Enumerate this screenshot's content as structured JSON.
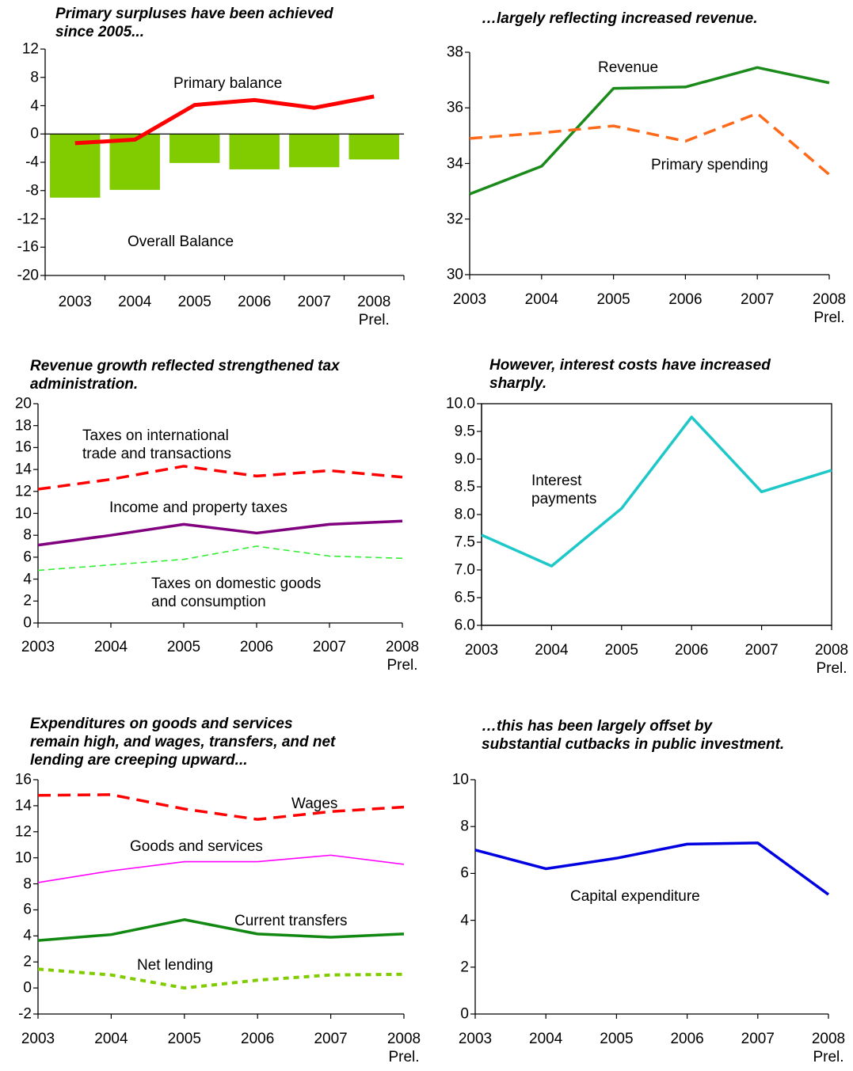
{
  "chart_data": [
    {
      "type": "combo",
      "title": "Primary surpluses have been achieved\nsince 2005...",
      "categories": [
        "2003",
        "2004",
        "2005",
        "2006",
        "2007",
        "2008\nPrel."
      ],
      "series": [
        {
          "name": "Overall Balance",
          "type": "bar",
          "color": "#80cc00",
          "values": [
            -9.0,
            -7.9,
            -4.1,
            -5.0,
            -4.7,
            -3.6
          ]
        },
        {
          "name": "Primary balance",
          "type": "line",
          "color": "#ff0000",
          "dash": "solid",
          "values": [
            -1.3,
            -0.8,
            4.1,
            4.8,
            3.7,
            5.3
          ]
        }
      ],
      "ylim": [
        -20,
        12
      ],
      "yticks": [
        -20,
        -16,
        -12,
        -8,
        -4,
        0,
        4,
        8,
        12
      ],
      "frame": false
    },
    {
      "type": "line",
      "title": "…largely reflecting increased revenue.",
      "categories": [
        "2003",
        "2004",
        "2005",
        "2006",
        "2007",
        "2008\nPrel."
      ],
      "series": [
        {
          "name": "Revenue",
          "color": "#1a8a1a",
          "dash": "solid",
          "values": [
            32.9,
            33.9,
            36.7,
            36.75,
            37.45,
            36.9
          ]
        },
        {
          "name": "Primary spending",
          "color": "#ff6a1a",
          "dash": "dashed",
          "values": [
            34.9,
            35.1,
            35.35,
            34.8,
            35.8,
            33.6
          ]
        }
      ],
      "ylim": [
        30,
        38
      ],
      "yticks": [
        30,
        32,
        34,
        36,
        38
      ],
      "frame": false
    },
    {
      "type": "line",
      "title": "Revenue growth reflected strengthened tax\nadministration.",
      "categories": [
        "2003",
        "2004",
        "2005",
        "2006",
        "2007",
        "2008\nPrel."
      ],
      "series": [
        {
          "name": "Taxes on international\ntrade and transactions",
          "color": "#ff0000",
          "dash": "dashed",
          "values": [
            12.2,
            13.1,
            14.3,
            13.4,
            13.9,
            13.3
          ]
        },
        {
          "name": "Income and property taxes",
          "color": "#800080",
          "dash": "solid",
          "values": [
            7.1,
            8.0,
            9.0,
            8.2,
            9.0,
            9.3
          ]
        },
        {
          "name": "Taxes on domestic goods\nand consumption",
          "color": "#33ee33",
          "dash": "thin-dashed",
          "values": [
            4.8,
            5.3,
            5.8,
            7.0,
            6.1,
            5.9
          ]
        }
      ],
      "ylim": [
        0,
        20
      ],
      "yticks": [
        0,
        2,
        4,
        6,
        8,
        10,
        12,
        14,
        16,
        18,
        20
      ],
      "frame": false
    },
    {
      "type": "line",
      "title": "However, interest costs have increased\nsharply.",
      "categories": [
        "2003",
        "2004",
        "2005",
        "2006",
        "2007",
        "2008\nPrel."
      ],
      "series": [
        {
          "name": "Interest\npayments",
          "color": "#1ec8c8",
          "dash": "solid",
          "values": [
            7.63,
            7.07,
            8.11,
            9.76,
            8.41,
            8.8
          ]
        }
      ],
      "ylim": [
        6,
        10
      ],
      "yticks": [
        {
          "value": 6,
          "label": "6.0"
        },
        6.5,
        {
          "value": 7,
          "label": "7.0"
        },
        7.5,
        {
          "value": 8,
          "label": "8.0"
        },
        8.5,
        {
          "value": 9,
          "label": "9.0"
        },
        9.5,
        {
          "value": 10,
          "label": "10.0"
        }
      ],
      "frame": true
    },
    {
      "type": "line",
      "title": "Expenditures on goods and services\nremain high, and wages, transfers, and net\nlending are creeping upward...",
      "categories": [
        "2003",
        "2004",
        "2005",
        "2006",
        "2007",
        "2008\nPrel."
      ],
      "series": [
        {
          "name": "Wages",
          "color": "#ff0000",
          "dash": "dashed",
          "values": [
            14.8,
            14.85,
            13.75,
            12.95,
            13.55,
            13.9
          ]
        },
        {
          "name": "Goods and services",
          "color": "#ff00ff",
          "dash": "thin",
          "values": [
            8.1,
            9.0,
            9.7,
            9.7,
            10.2,
            9.5
          ]
        },
        {
          "name": "Current transfers",
          "color": "#118811",
          "dash": "solid",
          "values": [
            3.65,
            4.1,
            5.25,
            4.15,
            3.9,
            4.15
          ]
        },
        {
          "name": "Net lending",
          "color": "#80cc00",
          "dash": "dotted",
          "values": [
            1.45,
            1.0,
            0.0,
            0.6,
            1.0,
            1.05
          ]
        }
      ],
      "ylim": [
        -2,
        16
      ],
      "yticks": [
        -2,
        0,
        2,
        4,
        6,
        8,
        10,
        12,
        14,
        16
      ],
      "frame": false
    },
    {
      "type": "line",
      "title": "…this has been largely offset by\nsubstantial cutbacks in public investment.",
      "categories": [
        "2003",
        "2004",
        "2005",
        "2006",
        "2007",
        "2008\nPrel."
      ],
      "series": [
        {
          "name": "Capital expenditure",
          "color": "#0000e0",
          "dash": "solid",
          "values": [
            7.0,
            6.2,
            6.65,
            7.25,
            7.3,
            5.1
          ]
        }
      ],
      "ylim": [
        0,
        10
      ],
      "yticks": [
        0,
        2,
        4,
        6,
        8,
        10
      ],
      "frame": false
    }
  ]
}
